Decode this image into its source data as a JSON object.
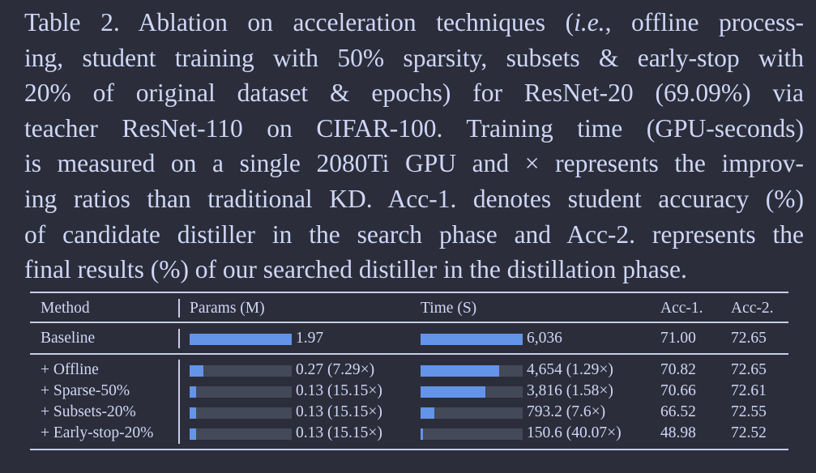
{
  "caption": {
    "lines": [
      "Table 2. Ablation on acceleration techniques (",
      "ing, student training with 50% sparsity, subsets & early-stop with",
      "20% of original dataset & epochs) for ResNet-20 (69.09%) via",
      "teacher ResNet-110 on CIFAR-100. Training time (GPU-seconds)",
      "is measured on a single 2080Ti GPU and × represents the improv-",
      "ing ratios than traditional KD. Acc-1. denotes student accuracy (%)",
      "of candidate distiller in the search phase and Acc-2. represents the",
      "final results (%) of our searched distiller in the distillation phase."
    ],
    "ie": "i.e.",
    "line1_tail": ", offline process-"
  },
  "table": {
    "headers": {
      "method": "Method",
      "params": "Params (M)",
      "time": "Time (S)",
      "acc1": "Acc-1.",
      "acc2": "Acc-2."
    },
    "rows": [
      {
        "method": "Baseline",
        "params_value": 1.97,
        "params_label": "1.97",
        "time_value": 6036,
        "time_label": "6,036",
        "acc1": "71.00",
        "acc2": "72.65"
      },
      {
        "method": "+ Offline",
        "params_value": 0.27,
        "params_label": "0.27 (7.29×)",
        "time_value": 4654,
        "time_label": "4,654 (1.29×)",
        "acc1": "70.82",
        "acc2": "72.65"
      },
      {
        "method": "+ Sparse-50%",
        "params_value": 0.13,
        "params_label": "0.13 (15.15×)",
        "time_value": 3816,
        "time_label": "3,816 (1.58×)",
        "acc1": "70.66",
        "acc2": "72.61"
      },
      {
        "method": "+ Subsets-20%",
        "params_value": 0.13,
        "params_label": "0.13 (15.15×)",
        "time_value": 793.2,
        "time_label": "793.2 (7.6×)",
        "acc1": "66.52",
        "acc2": "72.55"
      },
      {
        "method": "+ Early-stop-20%",
        "params_value": 0.13,
        "params_label": "0.13 (15.15×)",
        "time_value": 150.6,
        "time_label": "150.6 (40.07×)",
        "acc1": "48.98",
        "acc2": "72.52"
      }
    ],
    "params_max": 1.97,
    "time_max": 6036
  },
  "colors": {
    "background": "#2b2e3a",
    "text": "#cfd6f6",
    "bar_fill": "#6494e8",
    "bar_track": "#434959"
  }
}
